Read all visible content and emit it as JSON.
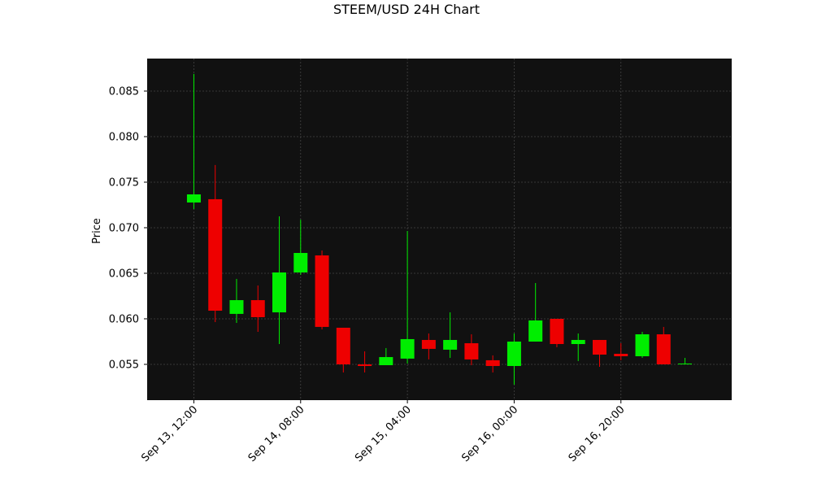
{
  "chart_data": {
    "type": "candlestick",
    "title": "STEEM/USD 24H Chart",
    "ylabel": "Price",
    "x": [
      "Sep 13, 12:00",
      "Sep 13, 16:00",
      "Sep 13, 20:00",
      "Sep 14, 00:00",
      "Sep 14, 04:00",
      "Sep 14, 08:00",
      "Sep 14, 12:00",
      "Sep 14, 16:00",
      "Sep 14, 20:00",
      "Sep 15, 00:00",
      "Sep 15, 04:00",
      "Sep 15, 08:00",
      "Sep 15, 12:00",
      "Sep 15, 16:00",
      "Sep 15, 20:00",
      "Sep 16, 00:00",
      "Sep 16, 04:00",
      "Sep 16, 08:00",
      "Sep 16, 12:00",
      "Sep 16, 16:00",
      "Sep 16, 20:00",
      "Sep 17, 00:00",
      "Sep 17, 04:00",
      "Sep 17, 08:00"
    ],
    "open": [
      0.07277,
      0.07313,
      0.06054,
      0.06205,
      0.06071,
      0.06509,
      0.06696,
      0.05902,
      0.055,
      0.05491,
      0.05563,
      0.05768,
      0.05661,
      0.05732,
      0.05545,
      0.05482,
      0.0575,
      0.06,
      0.05723,
      0.05768,
      0.05616,
      0.05589,
      0.0583,
      0.055
    ],
    "high": [
      0.08688,
      0.07688,
      0.06438,
      0.06366,
      0.07125,
      0.07089,
      0.0675,
      0.05902,
      0.05643,
      0.05679,
      0.06964,
      0.05839,
      0.06071,
      0.0583,
      0.05598,
      0.05839,
      0.06393,
      0.06,
      0.05839,
      0.05768,
      0.05732,
      0.05857,
      0.05911,
      0.05571
    ],
    "low": [
      0.07205,
      0.05964,
      0.05955,
      0.05857,
      0.05723,
      0.06482,
      0.05884,
      0.05411,
      0.05411,
      0.05491,
      0.05509,
      0.05554,
      0.05571,
      0.05491,
      0.05411,
      0.05277,
      0.0575,
      0.05688,
      0.05536,
      0.05473,
      0.05545,
      0.05571,
      0.055,
      0.055
    ],
    "close": [
      0.07366,
      0.06089,
      0.06205,
      0.06018,
      0.06509,
      0.06723,
      0.05911,
      0.055,
      0.05482,
      0.0558,
      0.05777,
      0.0567,
      0.05768,
      0.05554,
      0.05482,
      0.0575,
      0.05982,
      0.05723,
      0.05768,
      0.05607,
      0.05589,
      0.0583,
      0.055,
      0.05509
    ],
    "up_color": "#00ee00",
    "down_color": "#ee0000",
    "ylim": [
      0.05107,
      0.08857
    ],
    "yticks": [
      0.055,
      {
        "value": 0.06,
        "label": "0.060"
      },
      0.065,
      {
        "value": 0.07,
        "label": "0.070"
      },
      0.075,
      {
        "value": 0.08,
        "label": "0.080"
      },
      0.085
    ],
    "xticks": [
      "Sep 13, 12:00",
      "Sep 14, 08:00",
      "Sep 15, 04:00",
      "Sep 16, 00:00",
      "Sep 16, 20:00"
    ],
    "grid": true
  }
}
